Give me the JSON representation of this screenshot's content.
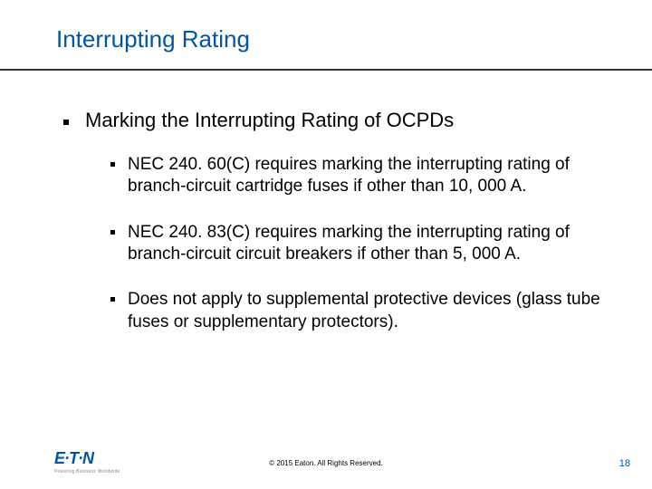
{
  "title": {
    "text": "Interrupting Rating",
    "color": "#0055a4",
    "fontsize": 26
  },
  "rule_color": "#333333",
  "level1": {
    "text": "Marking the Interrupting Rating of OCPDs",
    "fontsize": 22,
    "color": "#000000"
  },
  "level2": [
    {
      "text": "NEC 240. 60(C) requires marking the interrupting rating of branch-circuit cartridge fuses if other than 10, 000 A."
    },
    {
      "text": "NEC 240. 83(C) requires marking the interrupting rating of branch-circuit circuit breakers if other than 5, 000 A."
    },
    {
      "text": "Does not apply to supplemental protective devices (glass tube fuses or supplementary protectors)."
    }
  ],
  "level2_style": {
    "fontsize": 19,
    "color": "#000000"
  },
  "footer": {
    "logo_text": "E·T·N",
    "logo_color": "#0055a4",
    "logo_fontsize": 18,
    "tagline": "Powering Business Worldwide",
    "copyright": "© 2015 Eaton. All Rights Reserved.",
    "page_number": "18",
    "page_number_color": "#0055a4"
  },
  "background_color": "#ffffff"
}
